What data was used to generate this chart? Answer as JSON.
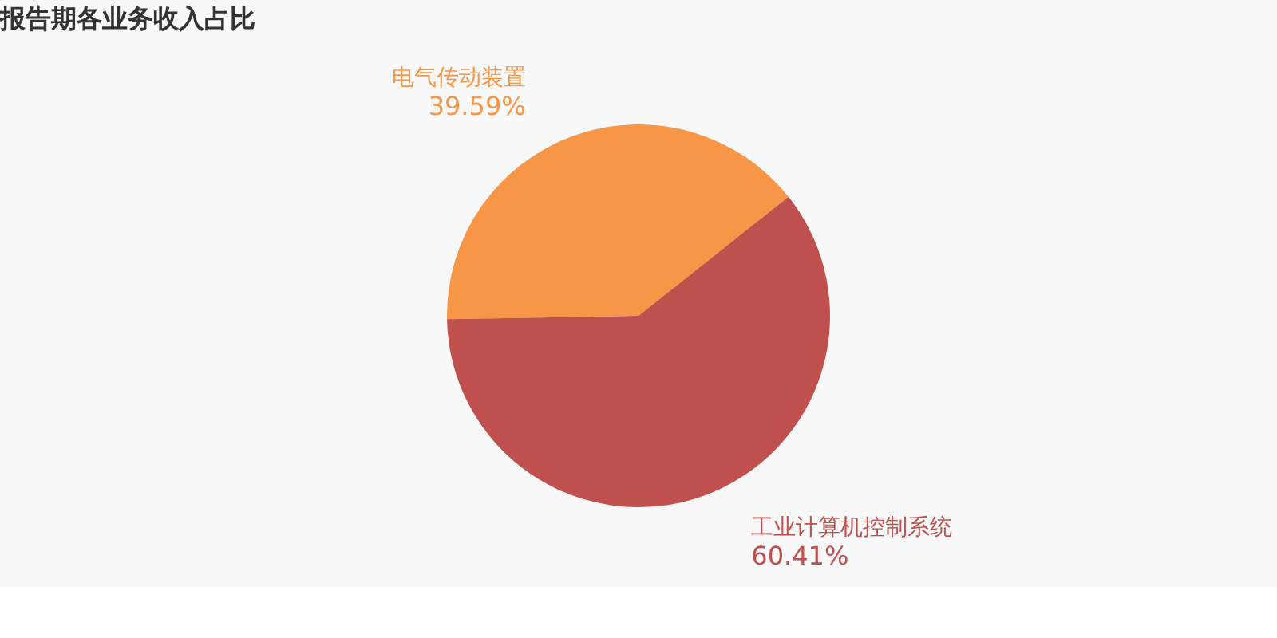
{
  "chart_data": {
    "type": "pie",
    "title": "报告期各业务收入占比",
    "categories": [
      "电气传动装置",
      "工业计算机控制系统"
    ],
    "values": [
      39.59,
      60.41
    ],
    "colors": [
      "#f79646",
      "#c0504d"
    ],
    "value_labels": [
      "39.59%",
      "60.41%"
    ],
    "legend": false
  }
}
